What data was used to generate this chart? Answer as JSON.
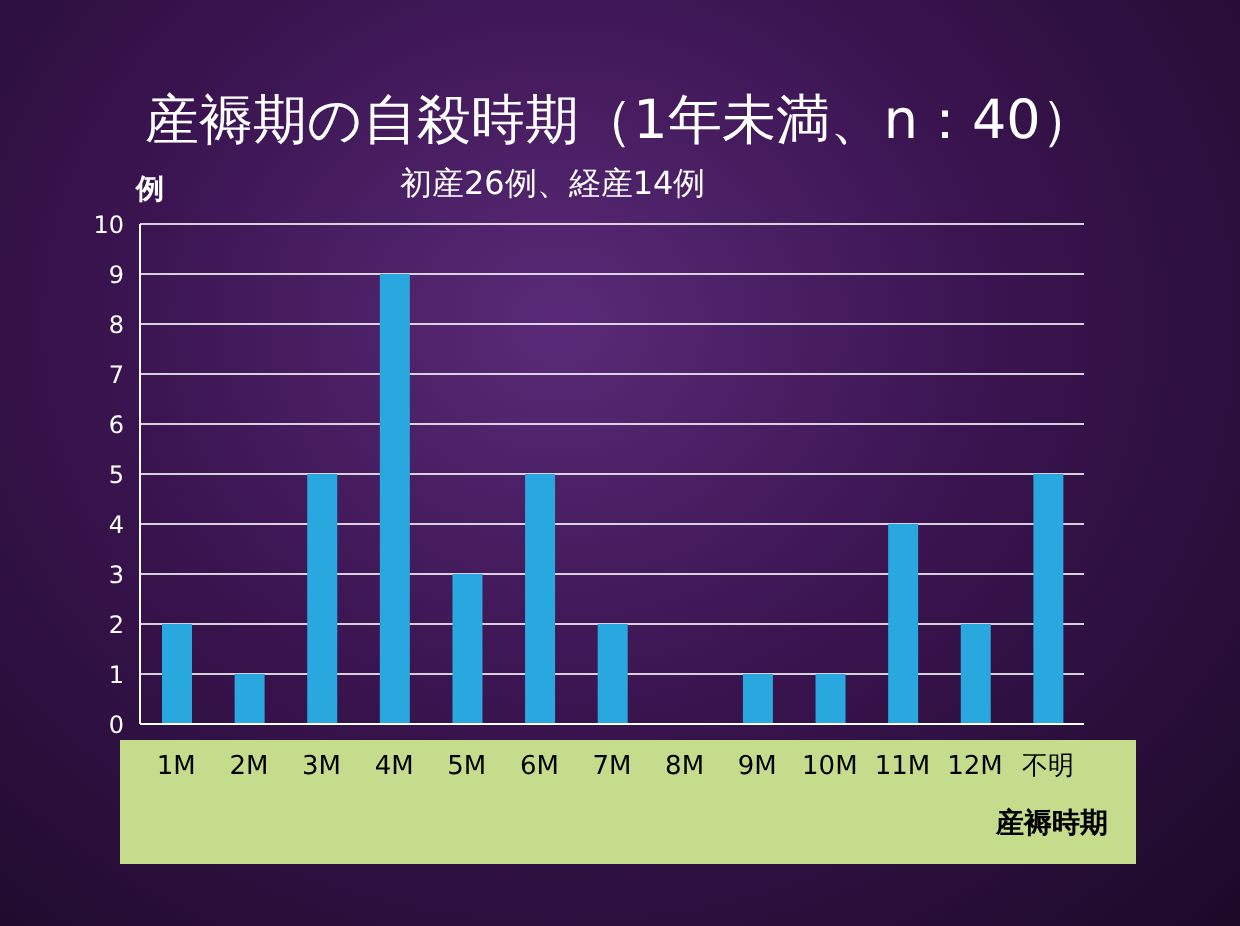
{
  "chart_data": {
    "type": "bar",
    "title": "産褥期の自殺時期（1年未満、n：40）",
    "subtitle": "初産26例、経産14例",
    "ylabel": "例",
    "xlabel": "産褥時期",
    "categories": [
      "1M",
      "2M",
      "3M",
      "4M",
      "5M",
      "6M",
      "7M",
      "8M",
      "9M",
      "10M",
      "11M",
      "12M",
      "不明"
    ],
    "values": [
      2,
      1,
      5,
      9,
      3,
      5,
      2,
      0,
      1,
      1,
      4,
      2,
      5
    ],
    "color": "#29a8e0",
    "ylim": [
      0,
      10
    ],
    "yticks": [
      0,
      1,
      2,
      3,
      4,
      5,
      6,
      7,
      8,
      9,
      10
    ],
    "grid": "y"
  }
}
